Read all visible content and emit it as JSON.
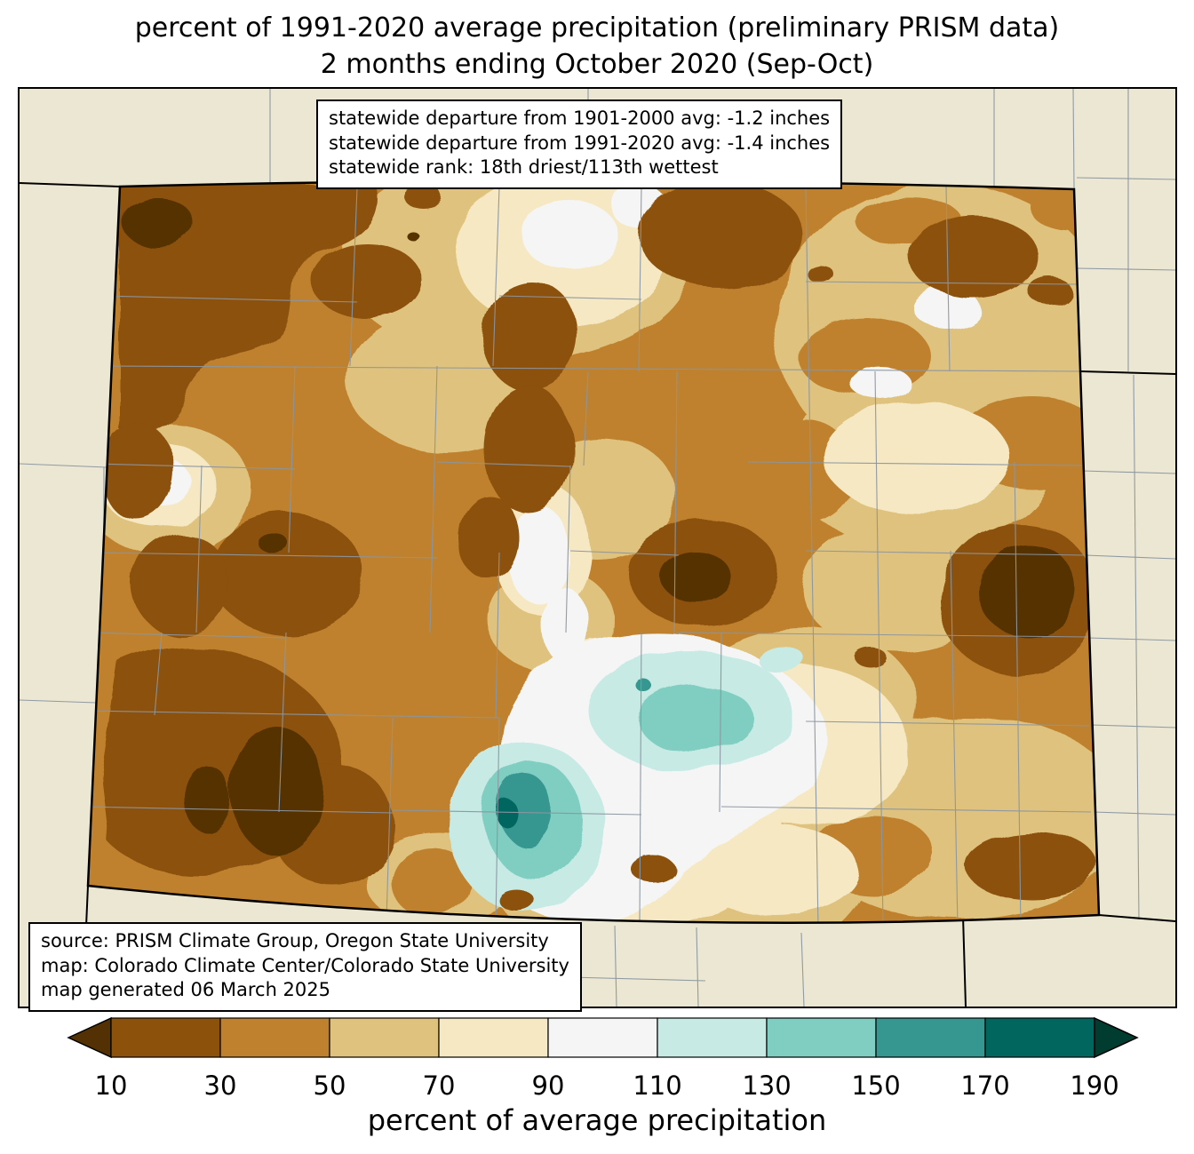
{
  "title": {
    "line1": "percent of 1991-2020 average precipitation (preliminary PRISM data)",
    "line2": "2 months ending October 2020 (Sep-Oct)"
  },
  "stats_box": {
    "line1": "statewide departure from 1901-2000 avg: -1.2 inches",
    "line2": "statewide departure from 1991-2020 avg: -1.4 inches",
    "line3": "statewide rank: 18th driest/113th wettest"
  },
  "source_box": {
    "line1": "source: PRISM Climate Group, Oregon State University",
    "line2": "map: Colorado Climate Center/Colorado State University",
    "line3": "map generated 06 March 2025"
  },
  "colorbar": {
    "label": "percent of average precipitation",
    "tick_labels": [
      "10",
      "30",
      "50",
      "70",
      "90",
      "110",
      "130",
      "150",
      "170",
      "190"
    ],
    "colors": {
      "under": "#543005",
      "segments": [
        "#8c510a",
        "#bf812d",
        "#dfc27d",
        "#f6e8c3",
        "#f5f5f5",
        "#c7eae5",
        "#80cdc1",
        "#35978f",
        "#01665e"
      ],
      "over": "#003c30"
    }
  },
  "map": {
    "state": "Colorado",
    "background_color": "#ece7d2",
    "state_border_color": "#000000",
    "county_line_color": "#8b96a0"
  }
}
